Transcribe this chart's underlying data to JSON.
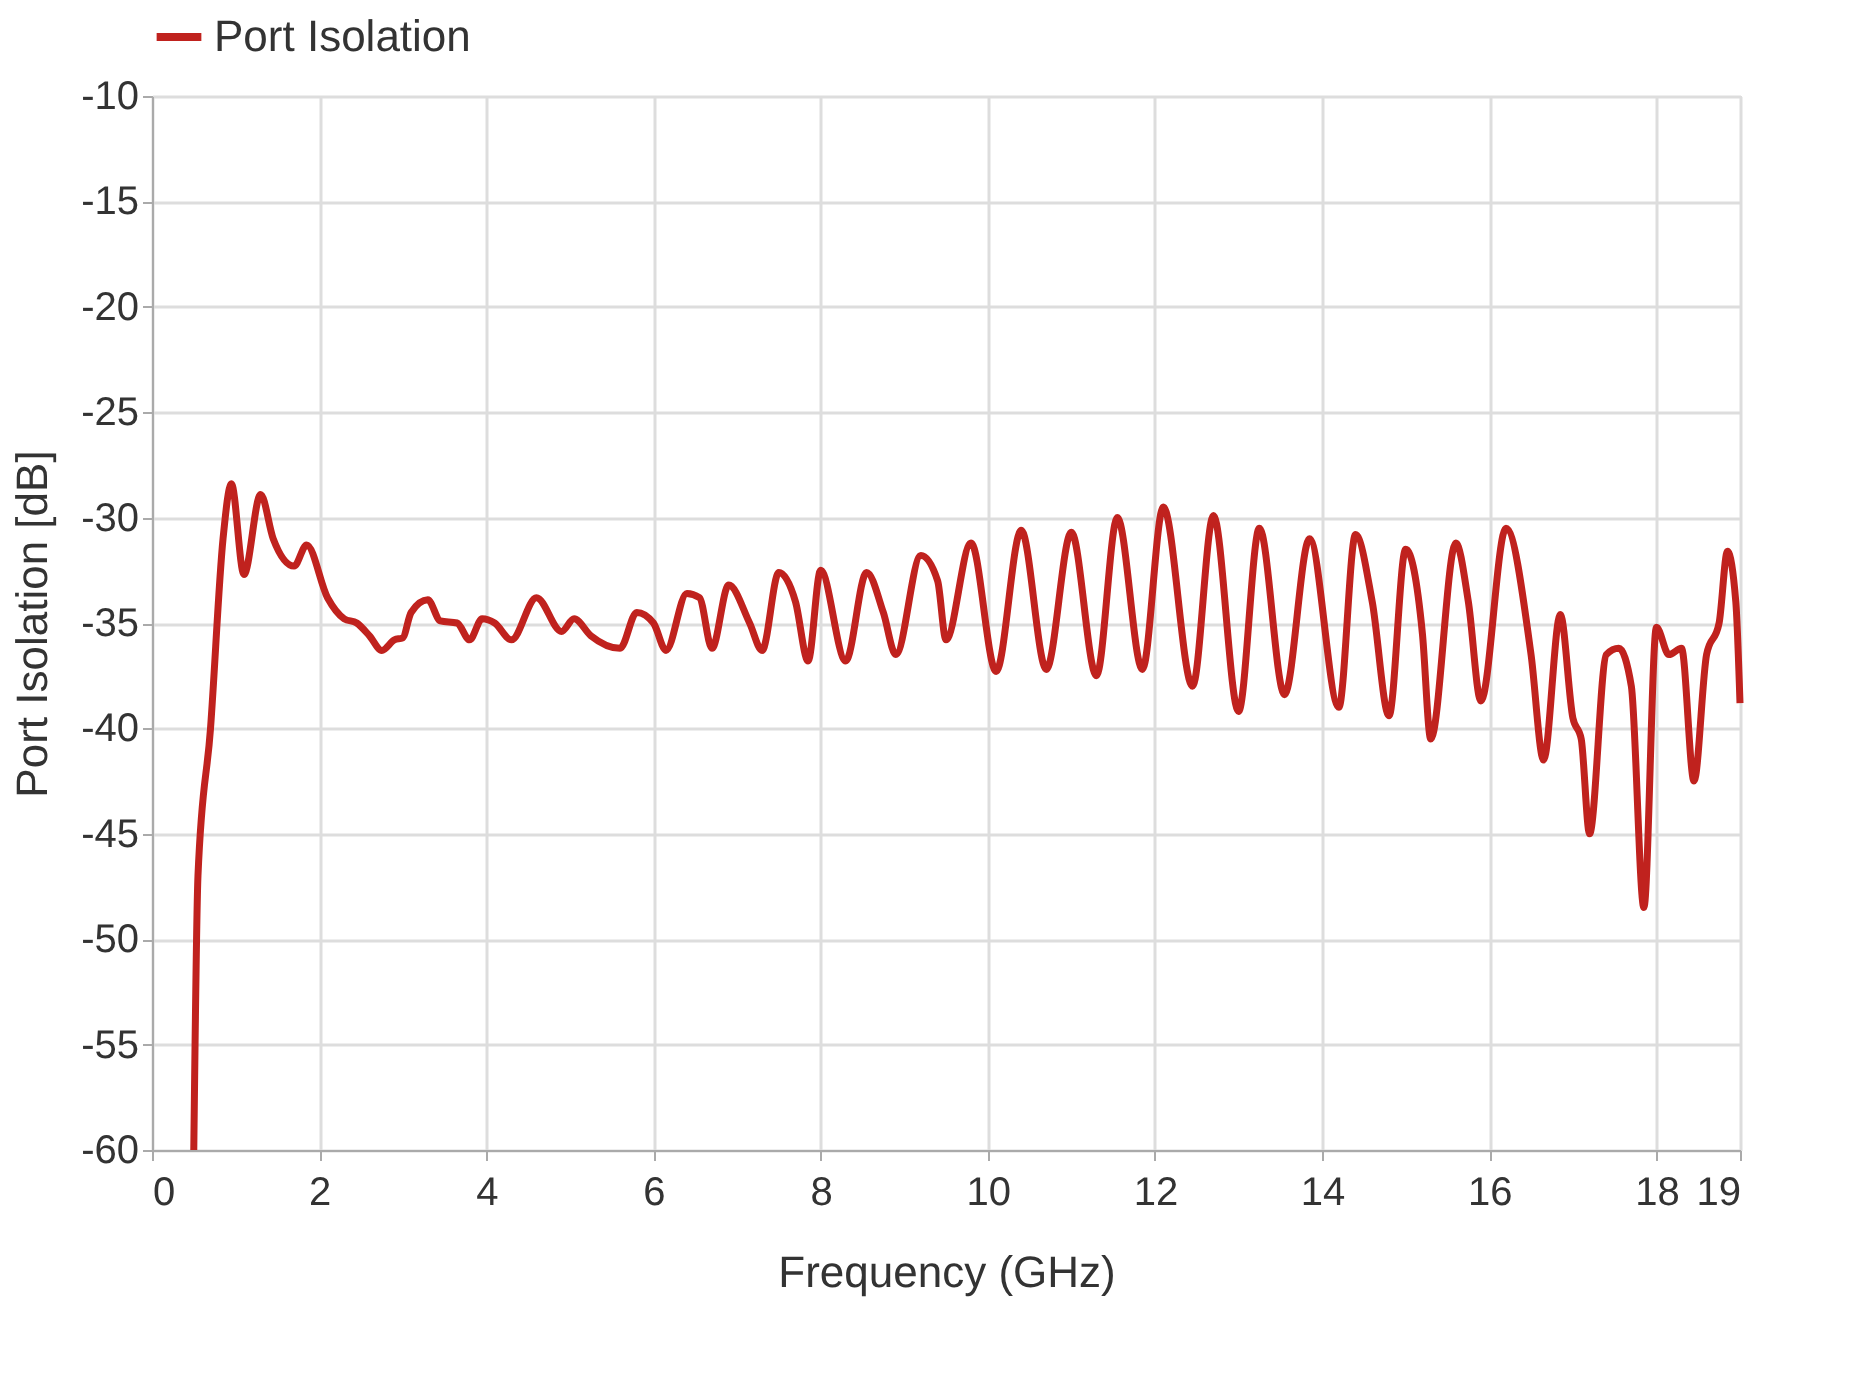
{
  "chart_data": {
    "type": "line",
    "xlabel": "Frequency (GHz)",
    "ylabel": "Port Isolation [dB]",
    "xlim": [
      0,
      19
    ],
    "xticks": [
      0,
      2,
      4,
      6,
      8,
      10,
      12,
      14,
      16,
      18,
      19
    ],
    "ylim": [
      -60,
      -10
    ],
    "yticks": [
      -60,
      -55,
      -50,
      -45,
      -40,
      -35,
      -30,
      -25,
      -20,
      -15,
      -10
    ],
    "grid": true,
    "legend": "top",
    "marker": "none",
    "line_style": "solid",
    "series": [
      {
        "name": "Port Isolation",
        "color": "#c0221e",
        "x": [
          0.5,
          0.55,
          0.7,
          0.85,
          0.95,
          1.1,
          1.3,
          1.45,
          1.7,
          1.85,
          2.1,
          2.3,
          2.45,
          2.6,
          2.75,
          2.9,
          3.0,
          3.1,
          3.3,
          3.45,
          3.65,
          3.8,
          3.95,
          4.1,
          4.3,
          4.6,
          4.9,
          5.05,
          5.25,
          5.6,
          5.8,
          6.0,
          6.15,
          6.4,
          6.55,
          6.7,
          6.9,
          7.15,
          7.3,
          7.5,
          7.7,
          7.85,
          8.0,
          8.3,
          8.55,
          8.75,
          8.9,
          9.2,
          9.4,
          9.5,
          9.8,
          10.1,
          10.4,
          10.7,
          11.0,
          11.3,
          11.55,
          11.85,
          12.1,
          12.45,
          12.7,
          13.0,
          13.25,
          13.55,
          13.85,
          14.2,
          14.4,
          14.6,
          14.8,
          15.0,
          15.2,
          15.3,
          15.6,
          15.75,
          15.9,
          16.2,
          16.5,
          16.65,
          16.85,
          17.0,
          17.1,
          17.2,
          17.4,
          17.55,
          17.7,
          17.85,
          18.0,
          18.15,
          18.3,
          18.45,
          18.6,
          18.75,
          18.85,
          18.95,
          19.0
        ],
        "values": [
          -60,
          -47,
          -40,
          -31,
          -28.4,
          -32.7,
          -28.9,
          -31,
          -32.3,
          -31.3,
          -33.8,
          -34.8,
          -35,
          -35.6,
          -36.3,
          -35.8,
          -35.7,
          -34.5,
          -33.9,
          -34.9,
          -35,
          -35.8,
          -34.8,
          -35,
          -35.8,
          -33.8,
          -35.4,
          -34.8,
          -35.6,
          -36.2,
          -34.5,
          -35,
          -36.3,
          -33.6,
          -33.8,
          -36.2,
          -33.2,
          -35,
          -36.3,
          -32.6,
          -34,
          -36.8,
          -32.5,
          -36.8,
          -32.6,
          -34.5,
          -36.5,
          -31.8,
          -33,
          -35.8,
          -31.2,
          -37.3,
          -30.6,
          -37.2,
          -30.7,
          -37.5,
          -30,
          -37.2,
          -29.5,
          -38,
          -29.9,
          -39.2,
          -30.5,
          -38.4,
          -31,
          -39,
          -30.8,
          -34,
          -39.4,
          -31.5,
          -35.5,
          -40.5,
          -31.2,
          -34,
          -38.7,
          -30.5,
          -36.5,
          -41.5,
          -34.6,
          -39.5,
          -40.5,
          -45,
          -36.5,
          -36.2,
          -38,
          -48.5,
          -35.2,
          -36.5,
          -36.2,
          -42.5,
          -36.5,
          -35,
          -31.6,
          -34,
          -38.8
        ]
      }
    ]
  }
}
